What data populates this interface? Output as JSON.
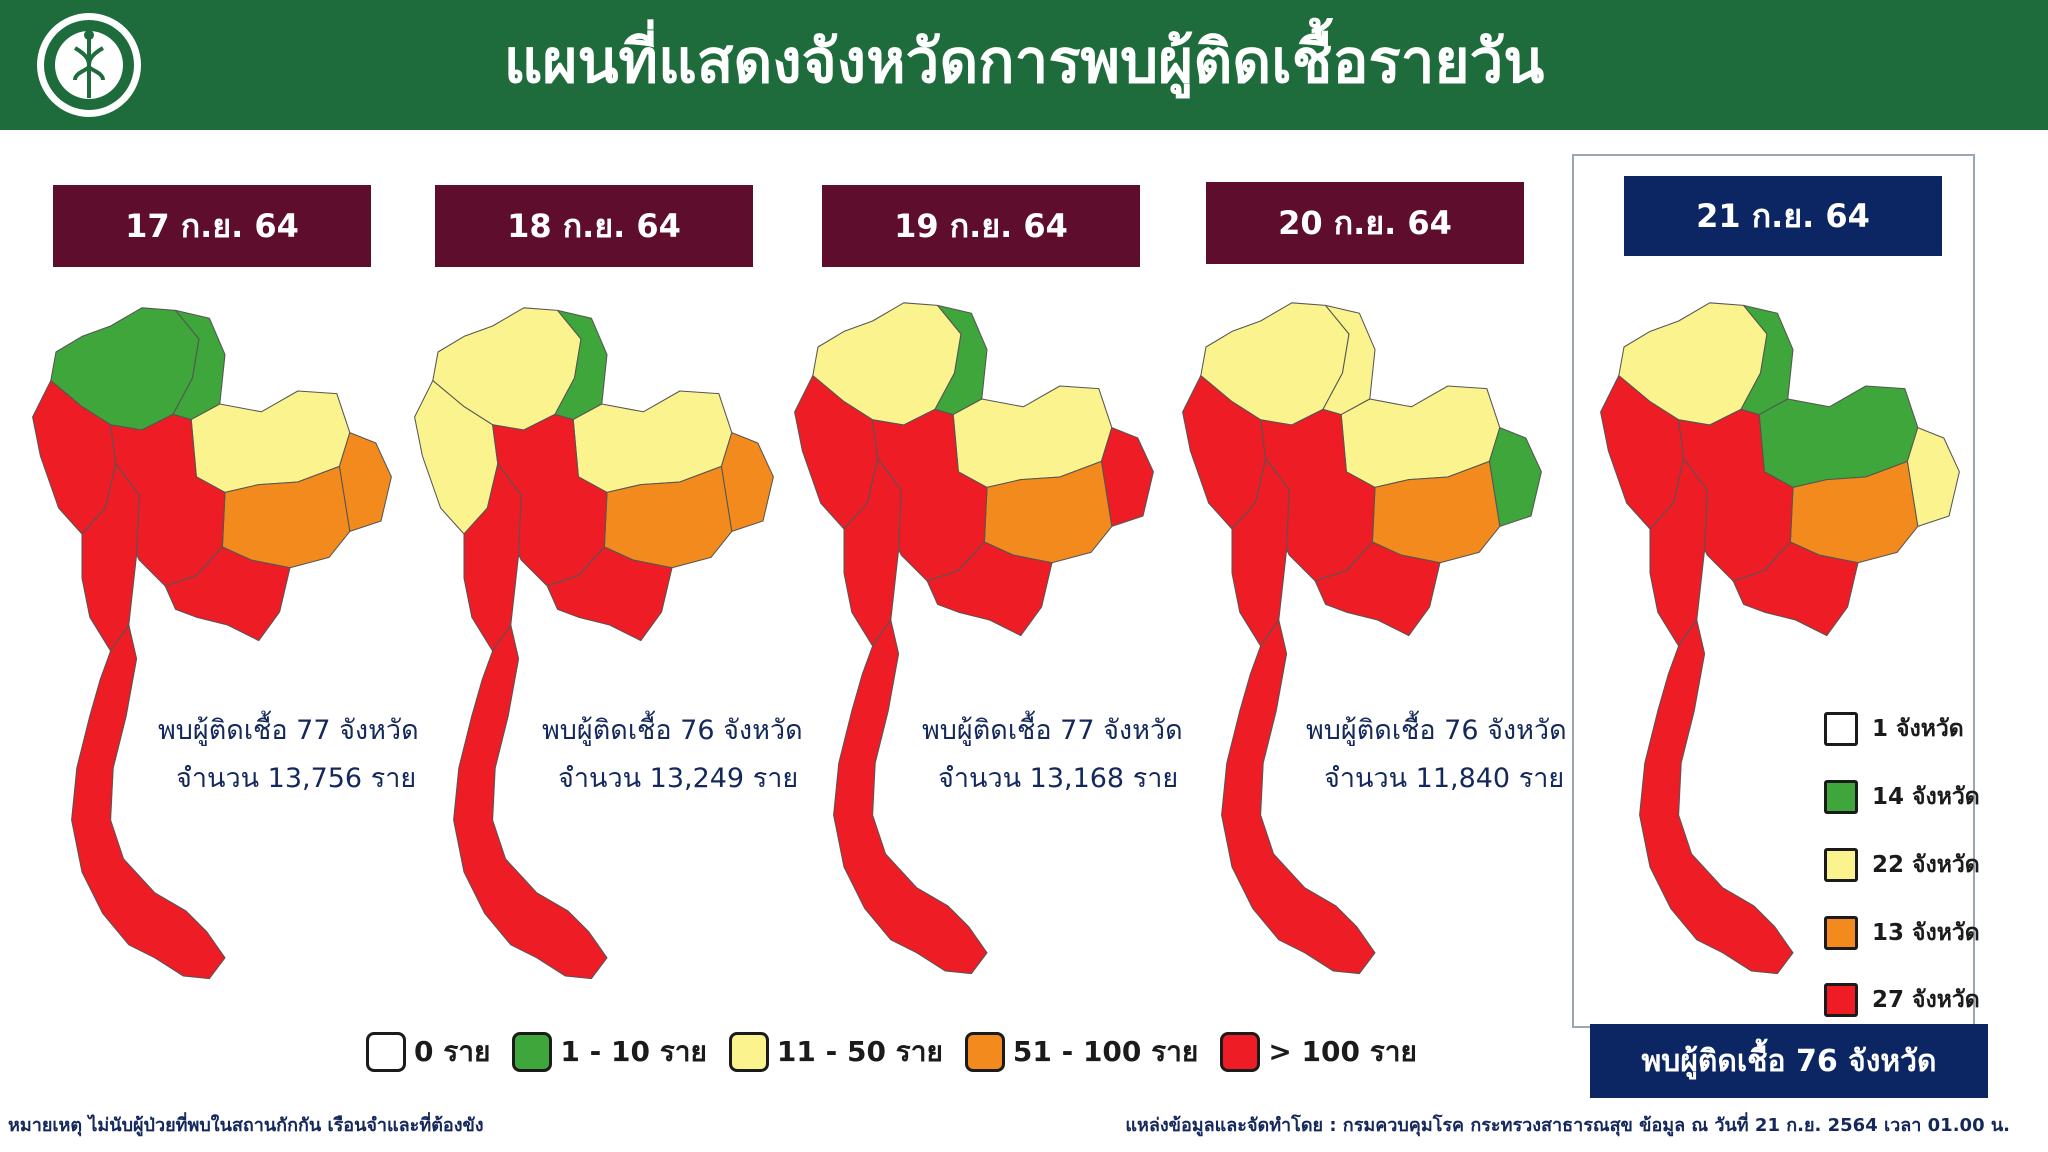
{
  "header": {
    "title": "แผนที่แสดงจังหวัดการพบผู้ติดเชื้อรายวัน",
    "logo_text": "กระทรวงสาธารณสุข MINISTRY OF PUBLIC HEALTH"
  },
  "colors": {
    "header_bg": "#1e6b3c",
    "past_banner": "#5e0d2d",
    "current_banner": "#0c2563",
    "level_0": "#ffffff",
    "level_1_10": "#3ea63a",
    "level_11_50": "#fbf38e",
    "level_51_100": "#f28a1e",
    "level_over_100": "#ee1c25"
  },
  "maps": [
    {
      "date": "17 ก.ย. 64",
      "provinces_line": "พบผู้ติดเชื้อ 77 จังหวัด",
      "cases_line": "จำนวน 13,756 ราย",
      "regions": {
        "far_north": "green",
        "north_west": "red",
        "north_east_top": "green",
        "isan_upper": "yellow",
        "isan_east": "orange",
        "isan_south": "orange",
        "central": "red",
        "east": "red",
        "west": "red",
        "south": "red"
      }
    },
    {
      "date": "18 ก.ย. 64",
      "provinces_line": "พบผู้ติดเชื้อ 76 จังหวัด",
      "cases_line": "จำนวน 13,249 ราย",
      "regions": {
        "far_north": "yellow",
        "north_west": "yellow",
        "north_east_top": "green",
        "isan_upper": "yellow",
        "isan_east": "orange",
        "isan_south": "orange",
        "central": "red",
        "east": "red",
        "west": "red",
        "south": "red"
      }
    },
    {
      "date": "19 ก.ย. 64",
      "provinces_line": "พบผู้ติดเชื้อ 77 จังหวัด",
      "cases_line": "จำนวน 13,168 ราย",
      "regions": {
        "far_north": "yellow",
        "north_west": "red",
        "north_east_top": "green",
        "isan_upper": "yellow",
        "isan_east": "red",
        "isan_south": "orange",
        "central": "red",
        "east": "red",
        "west": "red",
        "south": "red"
      }
    },
    {
      "date": "20 ก.ย. 64",
      "provinces_line": "พบผู้ติดเชื้อ 76 จังหวัด",
      "cases_line": "จำนวน 11,840 ราย",
      "regions": {
        "far_north": "yellow",
        "north_west": "red",
        "north_east_top": "yellow",
        "isan_upper": "yellow",
        "isan_east": "green",
        "isan_south": "orange",
        "central": "red",
        "east": "red",
        "west": "red",
        "south": "red"
      }
    },
    {
      "date": "21 ก.ย. 64",
      "regions": {
        "far_north": "yellow",
        "north_west": "red",
        "north_east_top": "green",
        "isan_upper": "green",
        "isan_east": "yellow",
        "isan_south": "orange",
        "central": "red",
        "east": "red",
        "west": "red",
        "south": "red"
      }
    }
  ],
  "province_counts": [
    {
      "label": "1 จังหวัด",
      "level": "level_0"
    },
    {
      "label": "14 จังหวัด",
      "level": "level_1_10"
    },
    {
      "label": "22 จังหวัด",
      "level": "level_11_50"
    },
    {
      "label": "13 จังหวัด",
      "level": "level_51_100"
    },
    {
      "label": "27 จังหวัด",
      "level": "level_over_100"
    }
  ],
  "summary": "พบผู้ติดเชื้อ 76 จังหวัด",
  "legend": [
    {
      "label": "0  ราย",
      "level": "level_0"
    },
    {
      "label": "1 - 10   ราย",
      "level": "level_1_10"
    },
    {
      "label": "11 - 50 ราย",
      "level": "level_11_50"
    },
    {
      "label": "51 - 100 ราย",
      "level": "level_51_100"
    },
    {
      "label": "> 100  ราย",
      "level": "level_over_100"
    }
  ],
  "footer": {
    "note": "หมายเหตุ ไม่นับผู้ป่วยที่พบในสถานกักกัน เรือนจำและที่ต้องขัง",
    "source": "แหล่งข้อมูลและจัดทำโดย : กรมควบคุมโรค กระทรวงสาธารณสุข ข้อมูล ณ วันที่ 21 ก.ย. 2564 เวลา 01.00 น."
  }
}
